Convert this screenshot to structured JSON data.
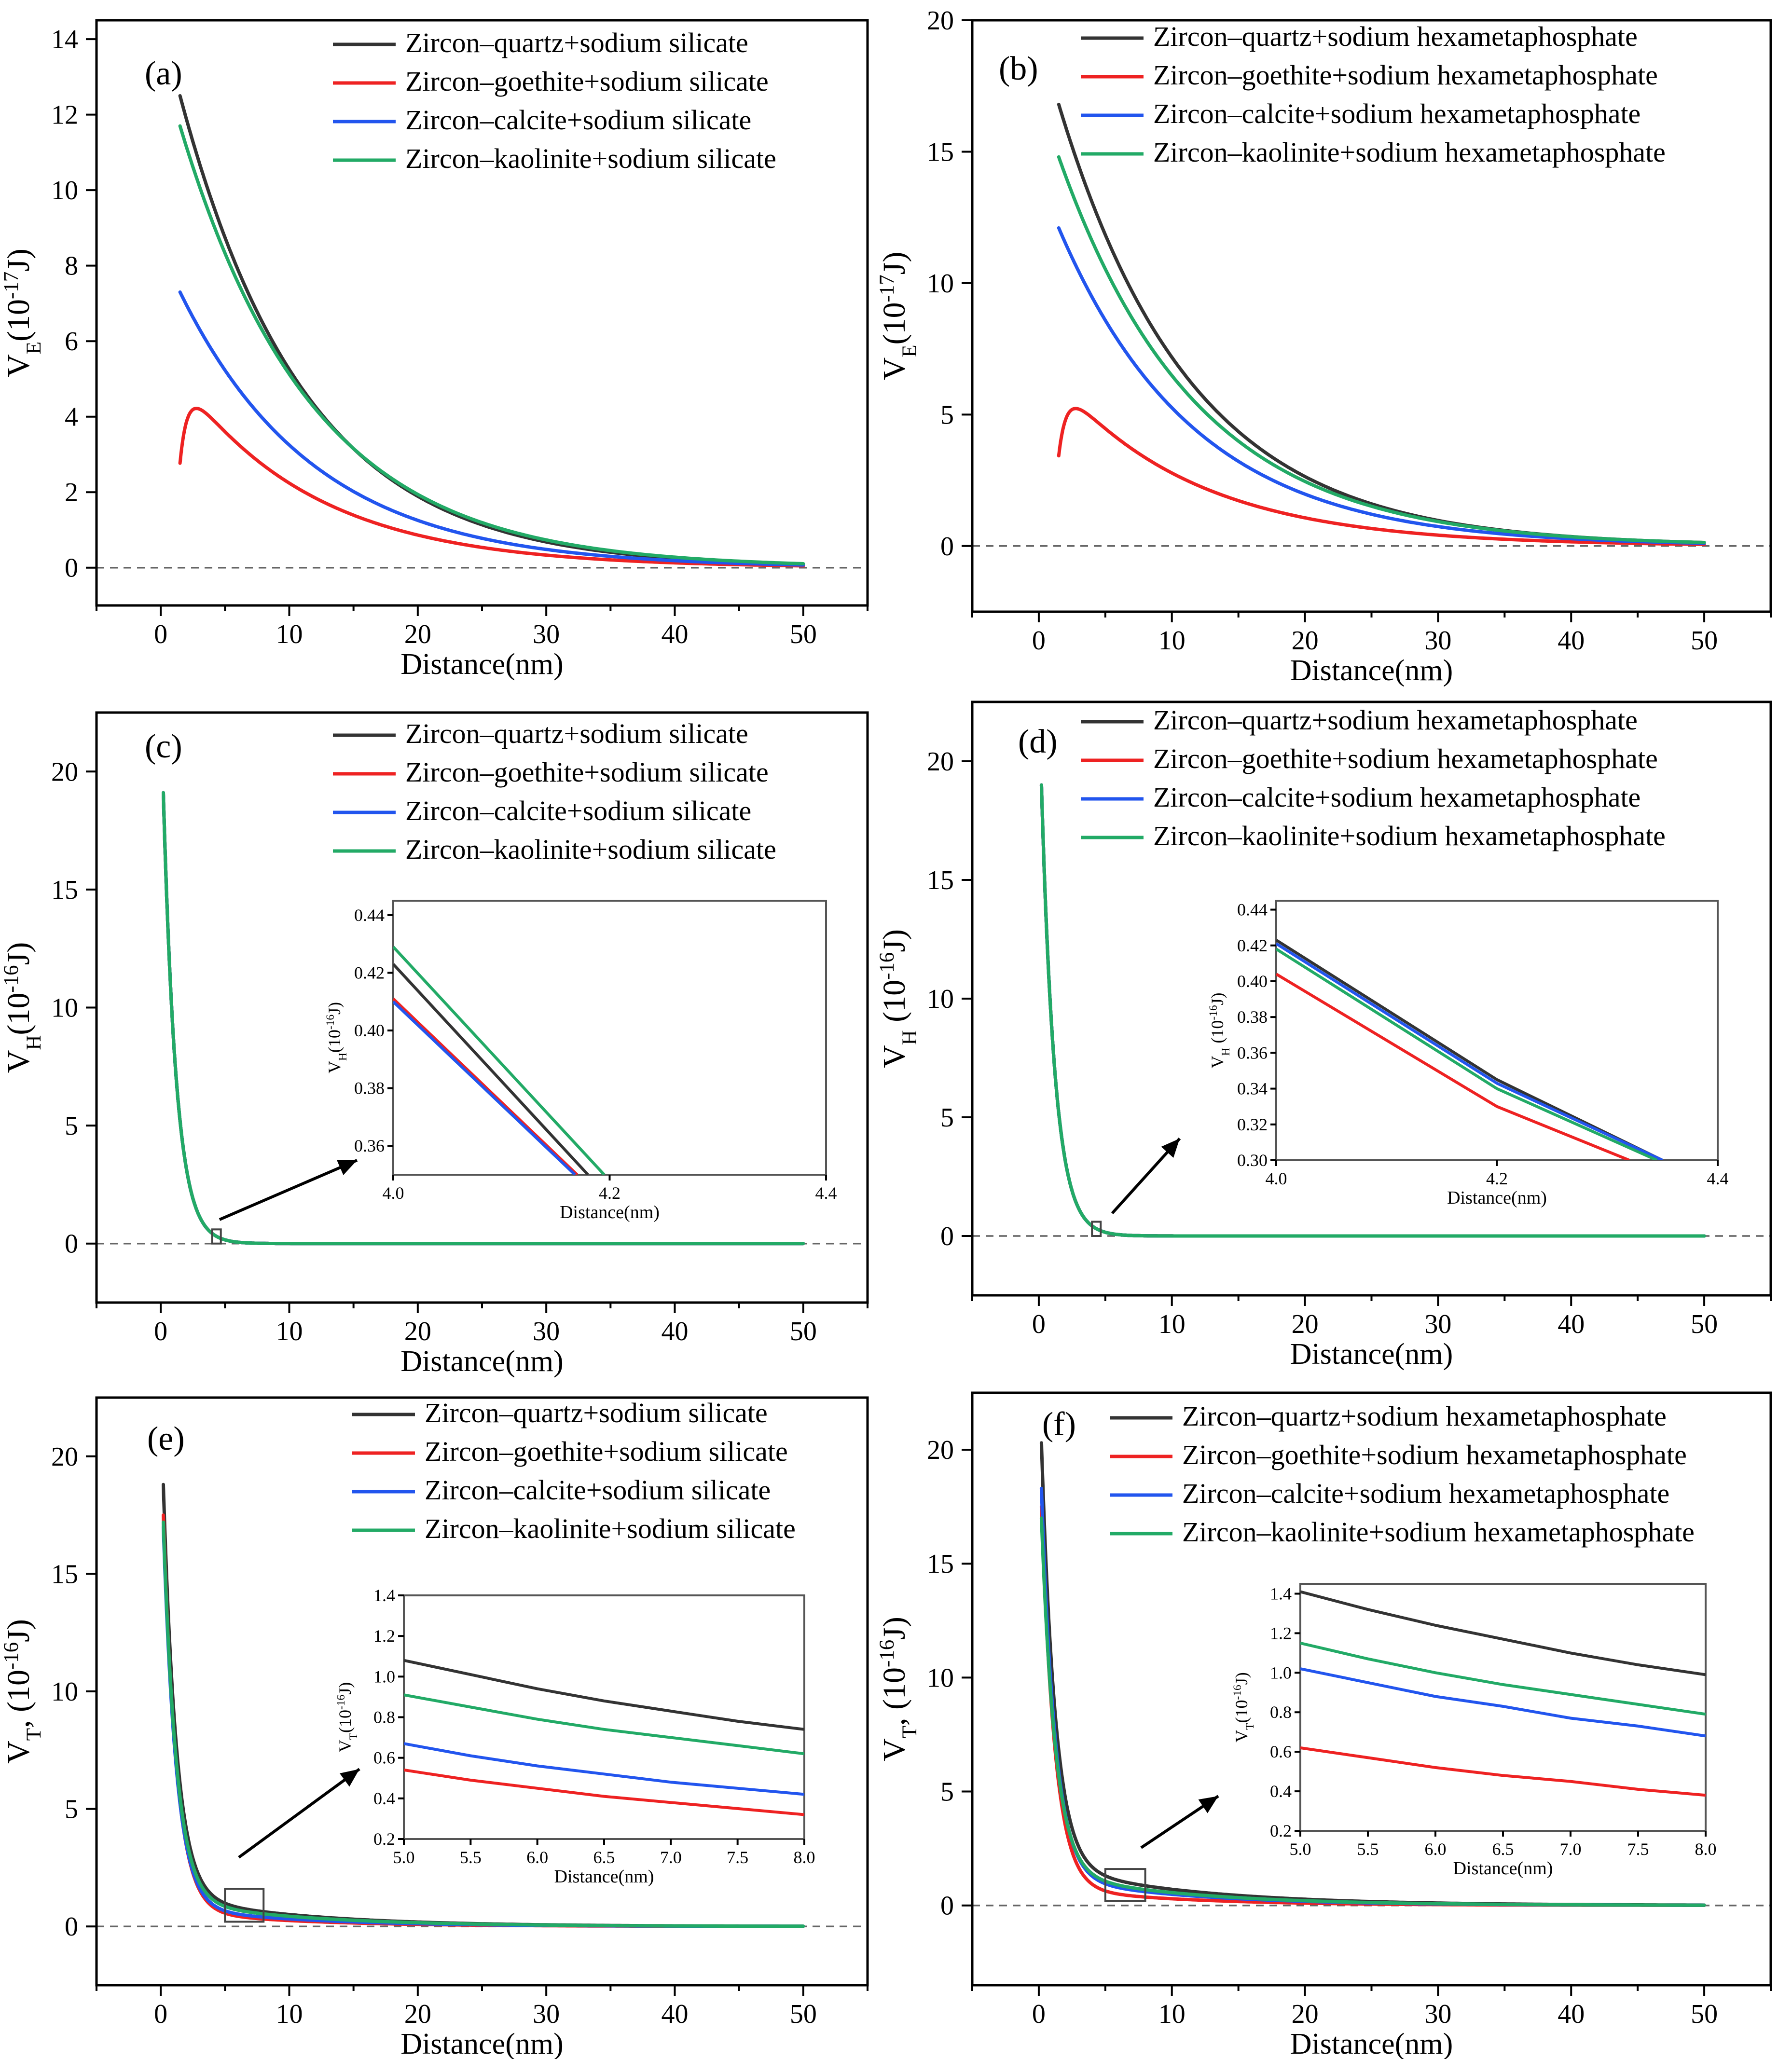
{
  "colors": {
    "quartz": "#333333",
    "goethite": "#ee2222",
    "calcite": "#2255ee",
    "kaolinite": "#22aa66",
    "zero_line": "#666666"
  },
  "chart_data": [
    {
      "id": "a",
      "panel_label": "(a)",
      "type": "line",
      "xlabel": "Distance(nm)",
      "ylabel_main": "V",
      "ylabel_sub": "E",
      "ylabel_unit_pre": "(10",
      "ylabel_exp": "-17",
      "ylabel_unit_post": "J)",
      "xlim": [
        -5,
        55
      ],
      "ylim": [
        -1,
        14.5
      ],
      "xticks": [
        0,
        10,
        20,
        30,
        40,
        50
      ],
      "yticks": [
        0,
        2,
        4,
        6,
        8,
        10,
        12,
        14
      ],
      "zero_line": true,
      "series": [
        {
          "name": "Zircon–quartz+sodium silicate",
          "color_key": "quartz",
          "model": {
            "kind": "exp",
            "amp": 12.5,
            "x0": 1.5,
            "decay": 9.8
          },
          "x_range": [
            1.5,
            50
          ]
        },
        {
          "name": "Zircon–goethite+sodium silicate",
          "color_key": "goethite",
          "model": {
            "kind": "bump",
            "amp": 4.8,
            "x0": 2.0,
            "decay": 10.5,
            "rise": 0.6
          },
          "x_range": [
            1.5,
            50
          ]
        },
        {
          "name": "Zircon–calcite+sodium silicate",
          "color_key": "calcite",
          "model": {
            "kind": "exp",
            "amp": 7.3,
            "x0": 1.5,
            "decay": 10.5
          },
          "x_range": [
            1.5,
            50
          ]
        },
        {
          "name": "Zircon–kaolinite+sodium silicate",
          "color_key": "kaolinite",
          "model": {
            "kind": "exp",
            "amp": 11.7,
            "x0": 1.5,
            "decay": 10.3
          },
          "x_range": [
            1.5,
            50
          ]
        }
      ]
    },
    {
      "id": "b",
      "panel_label": "(b)",
      "type": "line",
      "xlabel": "Distance(nm)",
      "ylabel_main": "V",
      "ylabel_sub": "E",
      "ylabel_unit_pre": "(10",
      "ylabel_exp": "-17",
      "ylabel_unit_post": "J)",
      "xlim": [
        -5,
        55
      ],
      "ylim": [
        -2.5,
        20
      ],
      "xticks": [
        0,
        10,
        20,
        30,
        40,
        50
      ],
      "yticks": [
        0,
        5,
        10,
        15,
        20
      ],
      "zero_line": true,
      "series": [
        {
          "name": "Zircon–quartz+sodium hexametaphosphate",
          "color_key": "quartz",
          "model": {
            "kind": "exp",
            "amp": 16.8,
            "x0": 1.5,
            "decay": 10.0
          },
          "x_range": [
            1.5,
            50
          ]
        },
        {
          "name": "Zircon–goethite+sodium hexametaphosphate",
          "color_key": "goethite",
          "model": {
            "kind": "bump",
            "amp": 5.95,
            "x0": 2.0,
            "decay": 10.5,
            "rise": 0.6
          },
          "x_range": [
            1.5,
            50
          ]
        },
        {
          "name": "Zircon–calcite+sodium hexametaphosphate",
          "color_key": "calcite",
          "model": {
            "kind": "exp",
            "amp": 12.1,
            "x0": 1.5,
            "decay": 10.2
          },
          "x_range": [
            1.5,
            50
          ]
        },
        {
          "name": "Zircon–kaolinite+sodium hexametaphosphate",
          "color_key": "kaolinite",
          "model": {
            "kind": "exp",
            "amp": 14.8,
            "x0": 1.5,
            "decay": 10.3
          },
          "x_range": [
            1.5,
            50
          ]
        }
      ]
    },
    {
      "id": "c",
      "panel_label": "(c)",
      "type": "line",
      "xlabel": "Distance(nm)",
      "ylabel_main": "V",
      "ylabel_sub": "H",
      "ylabel_unit_pre": "(10",
      "ylabel_exp": "-16",
      "ylabel_unit_post": "J)",
      "xlim": [
        -5,
        55
      ],
      "ylim": [
        -2.5,
        22.5
      ],
      "xticks": [
        0,
        10,
        20,
        30,
        40,
        50
      ],
      "yticks": [
        0,
        5,
        10,
        15,
        20
      ],
      "zero_line": true,
      "zoom_box": {
        "x": [
          4.0,
          4.4
        ],
        "y": [
          0.0,
          0.6
        ]
      },
      "series": [
        {
          "name": "Zircon–quartz+sodium silicate",
          "color_key": "quartz",
          "model": {
            "kind": "exp",
            "amp": 19.1,
            "x0": 0.2,
            "decay": 1.0
          },
          "x_range": [
            0.2,
            50
          ]
        },
        {
          "name": "Zircon–goethite+sodium silicate",
          "color_key": "goethite",
          "model": {
            "kind": "exp",
            "amp": 19.1,
            "x0": 0.2,
            "decay": 1.0
          },
          "x_range": [
            0.2,
            50
          ]
        },
        {
          "name": "Zircon–calcite+sodium silicate",
          "color_key": "calcite",
          "model": {
            "kind": "exp",
            "amp": 19.1,
            "x0": 0.2,
            "decay": 1.0
          },
          "x_range": [
            0.2,
            50
          ]
        },
        {
          "name": "Zircon–kaolinite+sodium silicate",
          "color_key": "kaolinite",
          "model": {
            "kind": "exp",
            "amp": 19.1,
            "x0": 0.2,
            "decay": 1.0
          },
          "x_range": [
            0.2,
            50
          ]
        }
      ],
      "inset": {
        "xlabel": "Distance(nm)",
        "ylabel_main": "V",
        "ylabel_sub": "H",
        "ylabel_unit_pre": "(10",
        "ylabel_exp": "-16",
        "ylabel_unit_post": "J)",
        "xlim": [
          4.0,
          4.4
        ],
        "ylim": [
          0.35,
          0.445
        ],
        "xticks": [
          "4.0",
          "4.2",
          "4.4"
        ],
        "yticks": [
          "0.36",
          "0.38",
          "0.40",
          "0.42",
          "0.44"
        ],
        "series": [
          {
            "color_key": "quartz",
            "x": [
              4.0,
              4.18
            ],
            "y": [
              0.423,
              0.35
            ]
          },
          {
            "color_key": "goethite",
            "x": [
              4.0,
              4.17
            ],
            "y": [
              0.411,
              0.35
            ]
          },
          {
            "color_key": "calcite",
            "x": [
              4.0,
              4.168
            ],
            "y": [
              0.41,
              0.35
            ]
          },
          {
            "color_key": "kaolinite",
            "x": [
              4.0,
              4.195
            ],
            "y": [
              0.429,
              0.35
            ]
          }
        ]
      }
    },
    {
      "id": "d",
      "panel_label": "(d)",
      "type": "line",
      "xlabel": "Distance(nm)",
      "ylabel_main": "V",
      "ylabel_sub": "H",
      "ylabel_unit_pre": " (10",
      "ylabel_exp": "-16",
      "ylabel_unit_post": "J)",
      "xlim": [
        -5,
        55
      ],
      "ylim": [
        -2.5,
        22.5
      ],
      "xticks": [
        0,
        10,
        20,
        30,
        40,
        50
      ],
      "yticks": [
        0,
        5,
        10,
        15,
        20
      ],
      "zero_line": true,
      "zoom_box": {
        "x": [
          4.0,
          4.4
        ],
        "y": [
          0.0,
          0.6
        ]
      },
      "series": [
        {
          "name": "Zircon–quartz+sodium hexametaphosphate",
          "color_key": "quartz",
          "model": {
            "kind": "exp",
            "amp": 19.0,
            "x0": 0.2,
            "decay": 1.0
          },
          "x_range": [
            0.2,
            50
          ]
        },
        {
          "name": "Zircon–goethite+sodium hexametaphosphate",
          "color_key": "goethite",
          "model": {
            "kind": "exp",
            "amp": 19.0,
            "x0": 0.2,
            "decay": 1.0
          },
          "x_range": [
            0.2,
            50
          ]
        },
        {
          "name": "Zircon–calcite+sodium hexametaphosphate",
          "color_key": "calcite",
          "model": {
            "kind": "exp",
            "amp": 19.0,
            "x0": 0.2,
            "decay": 1.0
          },
          "x_range": [
            0.2,
            50
          ]
        },
        {
          "name": "Zircon–kaolinite+sodium hexametaphosphate",
          "color_key": "kaolinite",
          "model": {
            "kind": "exp",
            "amp": 19.0,
            "x0": 0.2,
            "decay": 1.0
          },
          "x_range": [
            0.2,
            50
          ]
        }
      ],
      "inset": {
        "xlabel": "Distance(nm)",
        "ylabel_main": "V",
        "ylabel_sub": "H",
        "ylabel_unit_pre": " (10",
        "ylabel_exp": "-16",
        "ylabel_unit_post": "J)",
        "xlim": [
          4.0,
          4.4
        ],
        "ylim": [
          0.3,
          0.445
        ],
        "xticks": [
          "4.0",
          "4.2",
          "4.4"
        ],
        "yticks": [
          "0.30",
          "0.32",
          "0.34",
          "0.36",
          "0.38",
          "0.40",
          "0.42",
          "0.44"
        ],
        "series": [
          {
            "color_key": "quartz",
            "x": [
              4.0,
              4.2,
              4.35
            ],
            "y": [
              0.423,
              0.345,
              0.3
            ]
          },
          {
            "color_key": "calcite",
            "x": [
              4.0,
              4.2,
              4.35
            ],
            "y": [
              0.421,
              0.343,
              0.3
            ]
          },
          {
            "color_key": "kaolinite",
            "x": [
              4.0,
              4.2,
              4.345
            ],
            "y": [
              0.418,
              0.34,
              0.3
            ]
          },
          {
            "color_key": "goethite",
            "x": [
              4.0,
              4.2,
              4.32
            ],
            "y": [
              0.404,
              0.33,
              0.3
            ]
          }
        ]
      }
    },
    {
      "id": "e",
      "panel_label": "(e)",
      "type": "line",
      "xlabel": "Distance(nm)",
      "ylabel_main": "V",
      "ylabel_sub": "T",
      "ylabel_unit_pre": ", (10",
      "ylabel_exp": "-16",
      "ylabel_unit_post": "J)",
      "xlim": [
        -5,
        55
      ],
      "ylim": [
        -2.5,
        22.5
      ],
      "xticks": [
        0,
        10,
        20,
        30,
        40,
        50
      ],
      "yticks": [
        0,
        5,
        10,
        15,
        20
      ],
      "zero_line": true,
      "zoom_box": {
        "x": [
          5.0,
          8.0
        ],
        "y": [
          0.2,
          1.6
        ]
      },
      "series": [
        {
          "name": "Zircon–quartz+sodium silicate",
          "color_key": "quartz",
          "model": {
            "kind": "double",
            "amp": 18.8,
            "x0": 0.2,
            "decay": 1.0,
            "amp2": 1.35,
            "decay2": 10.0
          },
          "x_range": [
            0.2,
            50
          ]
        },
        {
          "name": "Zircon–goethite+sodium silicate",
          "color_key": "goethite",
          "model": {
            "kind": "double",
            "amp": 17.5,
            "x0": 0.2,
            "decay": 1.0,
            "amp2": 0.7,
            "decay2": 9.5
          },
          "x_range": [
            0.2,
            50
          ]
        },
        {
          "name": "Zircon–calcite+sodium silicate",
          "color_key": "calcite",
          "model": {
            "kind": "double",
            "amp": 17.0,
            "x0": 0.2,
            "decay": 1.0,
            "amp2": 0.85,
            "decay2": 10.0
          },
          "x_range": [
            0.2,
            50
          ]
        },
        {
          "name": "Zircon–kaolinite+sodium silicate",
          "color_key": "kaolinite",
          "model": {
            "kind": "double",
            "amp": 17.2,
            "x0": 0.2,
            "decay": 1.0,
            "amp2": 1.15,
            "decay2": 10.0
          },
          "x_range": [
            0.2,
            50
          ]
        }
      ],
      "inset": {
        "xlabel": "Distance(nm)",
        "ylabel_main": "V",
        "ylabel_sub": "T",
        "ylabel_unit_pre": "(10",
        "ylabel_exp": "-16",
        "ylabel_unit_post": "J)",
        "xlim": [
          5.0,
          8.0
        ],
        "ylim": [
          0.2,
          1.4
        ],
        "xticks": [
          "5.0",
          "5.5",
          "6.0",
          "6.5",
          "7.0",
          "7.5",
          "8.0"
        ],
        "yticks": [
          "0.2",
          "0.4",
          "0.6",
          "0.8",
          "1.0",
          "1.2",
          "1.4"
        ],
        "series": [
          {
            "color_key": "quartz",
            "x": [
              5.0,
              5.5,
              6.0,
              6.5,
              7.0,
              7.5,
              8.0
            ],
            "y": [
              1.08,
              1.01,
              0.94,
              0.88,
              0.83,
              0.78,
              0.74
            ]
          },
          {
            "color_key": "kaolinite",
            "x": [
              5.0,
              5.5,
              6.0,
              6.5,
              7.0,
              7.5,
              8.0
            ],
            "y": [
              0.91,
              0.85,
              0.79,
              0.74,
              0.7,
              0.66,
              0.62
            ]
          },
          {
            "color_key": "calcite",
            "x": [
              5.0,
              5.5,
              6.0,
              6.5,
              7.0,
              7.5,
              8.0
            ],
            "y": [
              0.67,
              0.61,
              0.56,
              0.52,
              0.48,
              0.45,
              0.42
            ]
          },
          {
            "color_key": "goethite",
            "x": [
              5.0,
              5.5,
              6.0,
              6.5,
              7.0,
              7.5,
              8.0
            ],
            "y": [
              0.54,
              0.49,
              0.45,
              0.41,
              0.38,
              0.35,
              0.32
            ]
          }
        ]
      }
    },
    {
      "id": "f",
      "panel_label": "(f)",
      "type": "line",
      "xlabel": "Distance(nm)",
      "ylabel_main": "V",
      "ylabel_sub": "T",
      "ylabel_unit_pre": ", (10",
      "ylabel_exp": "-16",
      "ylabel_unit_post": "J)",
      "xlim": [
        -5,
        55
      ],
      "ylim": [
        -3.5,
        22.5
      ],
      "xticks": [
        0,
        10,
        20,
        30,
        40,
        50
      ],
      "yticks": [
        0,
        5,
        10,
        15,
        20
      ],
      "zero_line": true,
      "zoom_box": {
        "x": [
          5.0,
          8.0
        ],
        "y": [
          0.2,
          1.6
        ]
      },
      "series": [
        {
          "name": "Zircon–quartz+sodium hexametaphosphate",
          "color_key": "quartz",
          "model": {
            "kind": "double",
            "amp": 20.3,
            "x0": 0.2,
            "decay": 1.0,
            "amp2": 1.8,
            "decay2": 10.5
          },
          "x_range": [
            0.2,
            50
          ]
        },
        {
          "name": "Zircon–goethite+sodium hexametaphosphate",
          "color_key": "goethite",
          "model": {
            "kind": "double",
            "amp": 17.5,
            "x0": 0.2,
            "decay": 1.0,
            "amp2": 0.82,
            "decay2": 9.5
          },
          "x_range": [
            0.2,
            50
          ]
        },
        {
          "name": "Zircon–calcite+sodium hexametaphosphate",
          "color_key": "calcite",
          "model": {
            "kind": "double",
            "amp": 18.3,
            "x0": 0.2,
            "decay": 1.0,
            "amp2": 1.3,
            "decay2": 10.0
          },
          "x_range": [
            0.2,
            50
          ]
        },
        {
          "name": "Zircon–kaolinite+sodium hexametaphosphate",
          "color_key": "kaolinite",
          "model": {
            "kind": "double",
            "amp": 17.0,
            "x0": 0.2,
            "decay": 1.0,
            "amp2": 1.5,
            "decay2": 10.0
          },
          "x_range": [
            0.2,
            50
          ]
        }
      ],
      "inset": {
        "xlabel": "Distance(nm)",
        "ylabel_main": "V",
        "ylabel_sub": "T",
        "ylabel_unit_pre": "(10",
        "ylabel_exp": "-16",
        "ylabel_unit_post": "J)",
        "xlim": [
          5.0,
          8.0
        ],
        "ylim": [
          0.2,
          1.45
        ],
        "xticks": [
          "5.0",
          "5.5",
          "6.0",
          "6.5",
          "7.0",
          "7.5",
          "8.0"
        ],
        "yticks": [
          "0.2",
          "0.4",
          "0.6",
          "0.8",
          "1.0",
          "1.2",
          "1.4"
        ],
        "series": [
          {
            "color_key": "quartz",
            "x": [
              5.0,
              5.5,
              6.0,
              6.5,
              7.0,
              7.5,
              8.0
            ],
            "y": [
              1.41,
              1.32,
              1.24,
              1.17,
              1.1,
              1.04,
              0.99
            ]
          },
          {
            "color_key": "kaolinite",
            "x": [
              5.0,
              5.5,
              6.0,
              6.5,
              7.0,
              7.5,
              8.0
            ],
            "y": [
              1.15,
              1.07,
              1.0,
              0.94,
              0.89,
              0.84,
              0.79
            ]
          },
          {
            "color_key": "calcite",
            "x": [
              5.0,
              5.5,
              6.0,
              6.5,
              7.0,
              7.5,
              8.0
            ],
            "y": [
              1.02,
              0.95,
              0.88,
              0.83,
              0.77,
              0.73,
              0.68
            ]
          },
          {
            "color_key": "goethite",
            "x": [
              5.0,
              5.5,
              6.0,
              6.5,
              7.0,
              7.5,
              8.0
            ],
            "y": [
              0.62,
              0.57,
              0.52,
              0.48,
              0.45,
              0.41,
              0.38
            ]
          }
        ]
      }
    }
  ]
}
